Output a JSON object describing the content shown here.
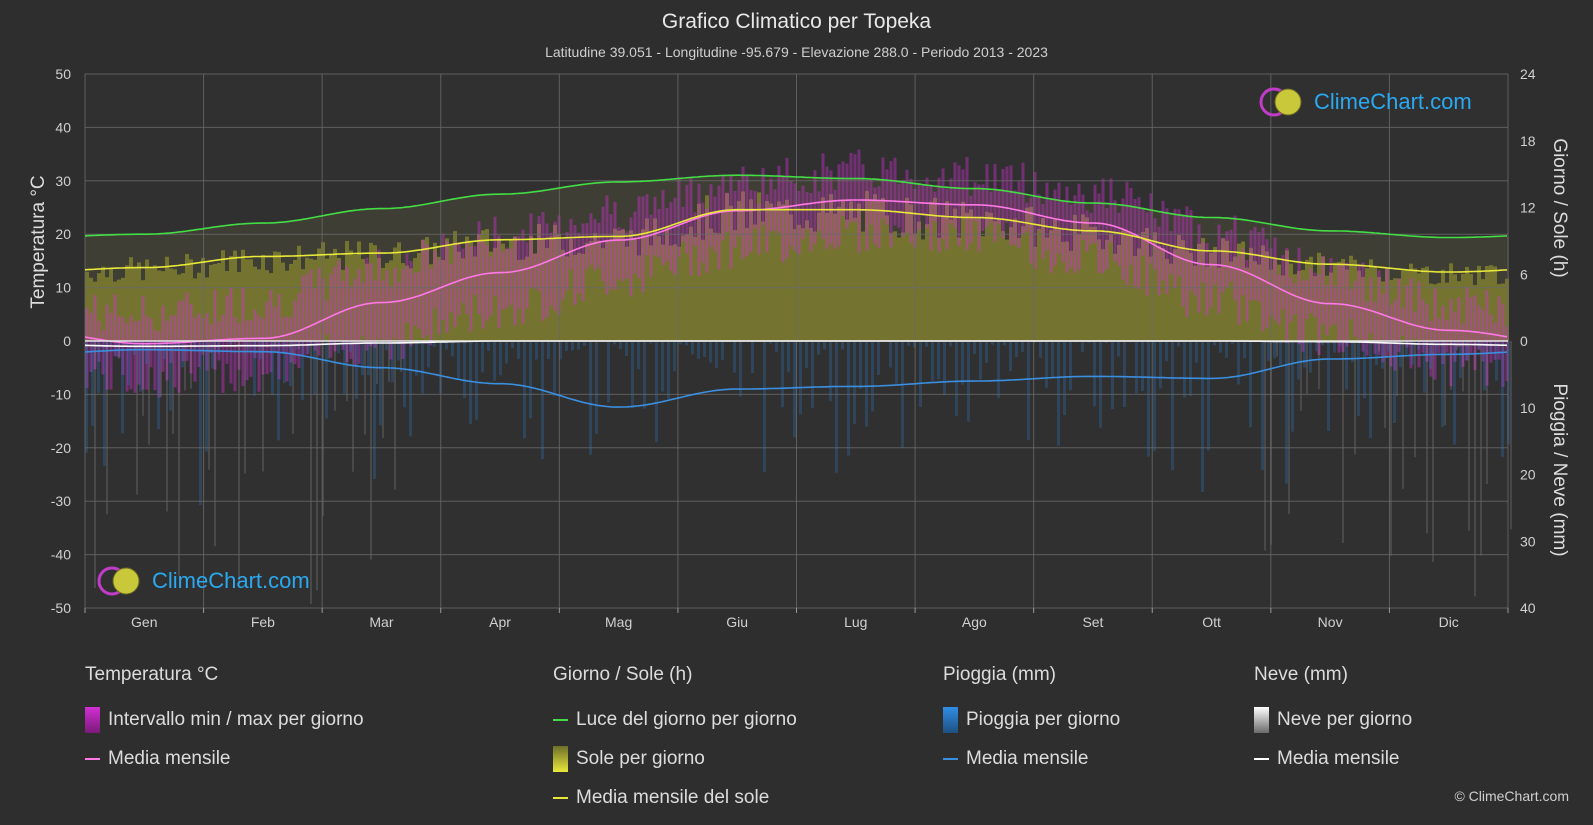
{
  "header": {
    "title": "Grafico Climatico per Topeka",
    "subtitle": "Latitudine 39.051 - Longitudine -95.679 - Elevazione 288.0 - Periodo 2013 - 2023"
  },
  "logo": {
    "text": "ClimeChart.com"
  },
  "copyright": "© ClimeChart.com",
  "colors": {
    "background": "#2e2e2e",
    "temp_range": "#d22fd2",
    "temp_mean": "#ff78e6",
    "daylight": "#44dd44",
    "sunshine": "#b5b52a",
    "sunshine_mean": "#e8e83a",
    "rain": "#2f7fcf",
    "rain_mean": "#3a8fe0",
    "snow": "#cfcfcf",
    "snow_mean": "#ffffff",
    "logo_text": "#2aa9f0"
  },
  "legend": {
    "temperature": {
      "title": "Temperatura °C",
      "items": [
        "Intervallo min / max per giorno",
        "Media mensile"
      ]
    },
    "sun": {
      "title": "Giorno / Sole (h)",
      "items": [
        "Luce del giorno per giorno",
        "Sole per giorno",
        "Media mensile del sole"
      ]
    },
    "rain": {
      "title": "Pioggia (mm)",
      "items": [
        "Pioggia per giorno",
        "Media mensile"
      ]
    },
    "snow": {
      "title": "Neve (mm)",
      "items": [
        "Neve per giorno",
        "Media mensile"
      ]
    }
  },
  "chart_data": {
    "type": "line",
    "categories": [
      "Gen",
      "Feb",
      "Mar",
      "Apr",
      "Mag",
      "Giu",
      "Lug",
      "Ago",
      "Set",
      "Ott",
      "Nov",
      "Dic"
    ],
    "y_left": {
      "label": "Temperatura °C",
      "range": [
        -50,
        50
      ],
      "ticks": [
        50,
        40,
        30,
        20,
        10,
        0,
        -10,
        -20,
        -30,
        -40,
        -50
      ]
    },
    "y_right_top": {
      "label": "Giorno / Sole (h)",
      "range": [
        0,
        24
      ],
      "ticks": [
        24,
        18,
        12,
        6,
        0
      ]
    },
    "y_right_bottom": {
      "label": "Pioggia / Neve (mm)",
      "range": [
        0,
        40
      ],
      "ticks": [
        0,
        10,
        20,
        30,
        40
      ]
    },
    "grid": true,
    "series": [
      {
        "name": "Media mensile",
        "group": "temperature",
        "unit": "°C",
        "values": [
          -0.5,
          0.5,
          7.2,
          12.8,
          18.9,
          24.4,
          26.4,
          25.5,
          22.1,
          14.3,
          7.0,
          2.0
        ]
      },
      {
        "name": "Intervallo min / max per giorno (max)",
        "group": "temperature",
        "unit": "°C",
        "values": [
          5.0,
          7.5,
          14.0,
          19.5,
          24.5,
          29.5,
          32.0,
          31.0,
          27.5,
          20.5,
          12.5,
          6.5
        ]
      },
      {
        "name": "Intervallo min / max per giorno (min)",
        "group": "temperature",
        "unit": "°C",
        "values": [
          -7.0,
          -5.5,
          0.0,
          6.0,
          12.0,
          17.5,
          20.5,
          19.5,
          15.0,
          7.5,
          1.0,
          -4.5
        ]
      },
      {
        "name": "Luce del giorno per giorno",
        "group": "sun",
        "unit": "h",
        "values": [
          9.6,
          10.6,
          11.9,
          13.2,
          14.3,
          14.9,
          14.6,
          13.7,
          12.4,
          11.1,
          9.9,
          9.3
        ]
      },
      {
        "name": "Sole per giorno",
        "group": "sun",
        "unit": "h",
        "values": [
          6.6,
          7.6,
          7.9,
          9.1,
          9.4,
          11.8,
          11.8,
          11.1,
          9.9,
          8.1,
          6.9,
          6.2
        ]
      },
      {
        "name": "Media mensile del sole",
        "group": "sun",
        "unit": "h",
        "values": [
          6.6,
          7.6,
          7.9,
          9.1,
          9.4,
          11.8,
          11.8,
          11.1,
          9.9,
          8.1,
          6.9,
          6.2
        ]
      },
      {
        "name": "Pioggia – Media mensile",
        "group": "rain",
        "unit": "mm",
        "values": [
          1.3,
          1.6,
          4.0,
          6.4,
          9.9,
          7.2,
          6.8,
          6.0,
          5.3,
          5.6,
          2.7,
          2.0
        ]
      },
      {
        "name": "Neve – Media mensile",
        "group": "snow",
        "unit": "mm",
        "values": [
          0.8,
          0.7,
          0.3,
          0.0,
          0.0,
          0.0,
          0.0,
          0.0,
          0.0,
          0.0,
          0.1,
          0.5
        ]
      }
    ]
  }
}
